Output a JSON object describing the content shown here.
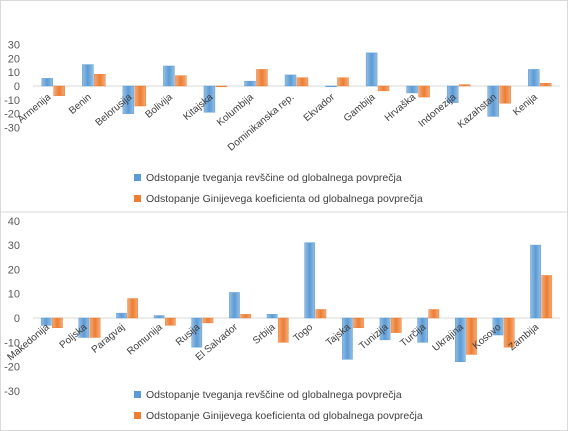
{
  "chart_data": [
    {
      "type": "bar",
      "categories": [
        "Armenija",
        "Benin",
        "Belorusija",
        "Bolivija",
        "Kitajska",
        "Kolumbija",
        "Dominikanska rep.",
        "Ekvador",
        "Gambija",
        "Hrvaška",
        "Indonezija",
        "Kazahstan",
        "Kenija"
      ],
      "series": [
        {
          "name": "Odstopanje tveganja revščine od globalnega povprečja",
          "color": "#5b9bd5",
          "values": [
            5.5,
            15.5,
            -20,
            14.5,
            -19,
            3.5,
            8,
            0,
            24,
            -5,
            -12,
            -22,
            12
          ]
        },
        {
          "name": "Odstopanje Ginijevega koeficienta od globalnega povprečja",
          "color": "#ed7d31",
          "values": [
            -7,
            8.5,
            -14.5,
            7.5,
            0,
            12,
            6,
            6,
            -3.5,
            -8,
            1,
            -12.5,
            2
          ]
        }
      ],
      "yticks": [
        30,
        20,
        10,
        0,
        -10,
        -20,
        -30
      ],
      "ylim": [
        -30,
        30
      ],
      "legend_position": "bottom"
    },
    {
      "type": "bar",
      "categories": [
        "Makedonija",
        "Poljska",
        "Paragvaj",
        "Romunija",
        "Rusija",
        "El Salvador",
        "Srbija",
        "Togo",
        "Tajska",
        "Tunizija",
        "Turčija",
        "Ukrajina",
        "Kosovo",
        "Zambija"
      ],
      "series": [
        {
          "name": "Odstopanje tveganja revščine od globalnega povprečja",
          "color": "#5b9bd5",
          "values": [
            -3,
            -8,
            2,
            1,
            -12,
            10.5,
            1.5,
            31,
            -17,
            -9,
            -10,
            -18,
            -7,
            30
          ]
        },
        {
          "name": "Odstopanje Ginijevega koeficienta od globalnega povprečja",
          "color": "#ed7d31",
          "values": [
            -4,
            -8,
            8,
            -3,
            -2,
            1.5,
            -10,
            3.5,
            -4,
            -6,
            3.5,
            -15,
            -12,
            17.5
          ]
        }
      ],
      "yticks": [
        40,
        30,
        20,
        10,
        0,
        -10,
        -20,
        -30
      ],
      "ylim": [
        -30,
        40
      ],
      "legend_position": "bottom"
    }
  ]
}
